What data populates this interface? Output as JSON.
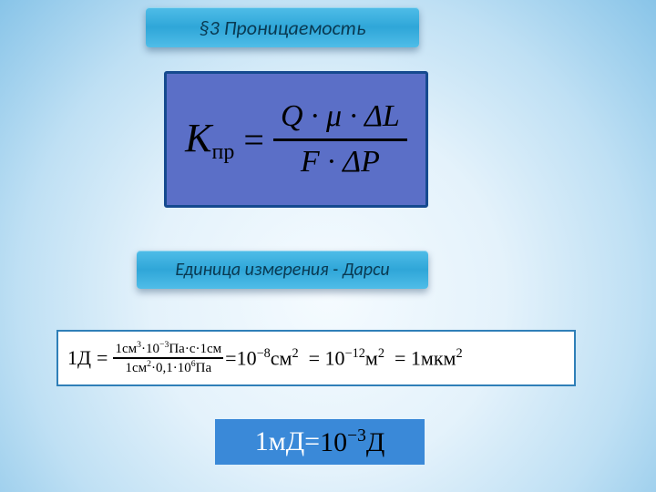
{
  "colors": {
    "banner_gradient_top": "#4fbde8",
    "banner_gradient_mid": "#2fa6d8",
    "banner_text": "#0a3a52",
    "formula_main_bg": "#5b6fc7",
    "formula_main_border": "#154a8f",
    "formula2_border": "#2f7fb8",
    "formula3_bg": "#3a89d8",
    "formula3_text_white": "#ffffff",
    "formula3_text_black": "#000000",
    "page_bg_inner": "#f5fbff",
    "page_bg_outer": "#88c4e8"
  },
  "banner_top": "§3 Проницаемость",
  "banner_mid": "Единица измерения - Дарси",
  "main_formula": {
    "lhs_var": "K",
    "lhs_sub": "пр",
    "eq": "=",
    "numerator": "Q · μ · ΔL",
    "denominator": "F · ΔP"
  },
  "formula2": {
    "lhs": "1Д",
    "eq": "=",
    "frac_num_parts": [
      "1см",
      "3",
      "·10",
      "−3",
      "Па·с·1см"
    ],
    "frac_den_parts": [
      "1см",
      "2",
      "·0,1·10",
      "6",
      "Па"
    ],
    "mid_eq": "=",
    "rhs_terms": [
      {
        "coef": "10",
        "exp": "−8",
        "unit": "см",
        "unitexp": "2"
      },
      {
        "coef": "10",
        "exp": "−12",
        "unit": "м",
        "unitexp": "2"
      },
      {
        "coef": "1мкм",
        "exp": "",
        "unit": "",
        "unitexp": "2"
      }
    ]
  },
  "formula3": {
    "white_prefix": "1мД=",
    "black_coef": "10",
    "black_exp": "−3",
    "black_unit": "Д"
  }
}
